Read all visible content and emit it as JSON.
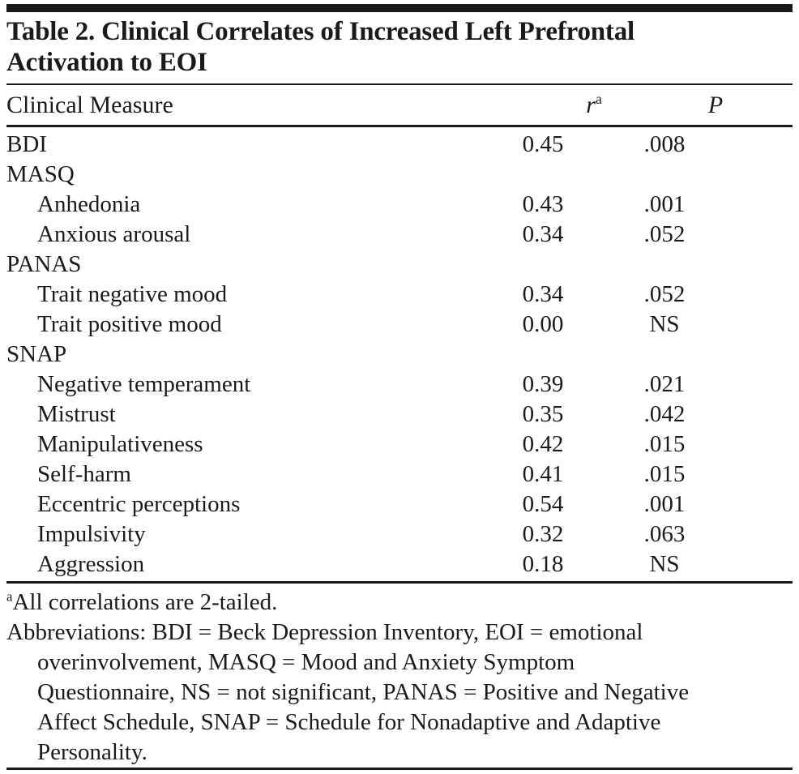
{
  "colors": {
    "text": "#1a1a1a",
    "rule": "#1a1a1a",
    "background": "#ffffff"
  },
  "title": "Table 2. Clinical Correlates of Increased Left Prefrontal\nActivation to EOI",
  "columns": {
    "measure": "Clinical Measure",
    "r_label": "r",
    "r_sup": "a",
    "p_label": "P"
  },
  "rows": [
    {
      "label": "BDI",
      "r": "0.45",
      "p": ".008",
      "indent": false
    },
    {
      "label": "MASQ",
      "r": "",
      "p": "",
      "indent": false
    },
    {
      "label": "Anhedonia",
      "r": "0.43",
      "p": ".001",
      "indent": true
    },
    {
      "label": "Anxious arousal",
      "r": "0.34",
      "p": ".052",
      "indent": true
    },
    {
      "label": "PANAS",
      "r": "",
      "p": "",
      "indent": false
    },
    {
      "label": "Trait negative mood",
      "r": "0.34",
      "p": ".052",
      "indent": true
    },
    {
      "label": "Trait positive mood",
      "r": "0.00",
      "p": "NS",
      "indent": true
    },
    {
      "label": "SNAP",
      "r": "",
      "p": "",
      "indent": false
    },
    {
      "label": "Negative temperament",
      "r": "0.39",
      "p": ".021",
      "indent": true
    },
    {
      "label": "Mistrust",
      "r": "0.35",
      "p": ".042",
      "indent": true
    },
    {
      "label": "Manipulativeness",
      "r": "0.42",
      "p": ".015",
      "indent": true
    },
    {
      "label": "Self-harm",
      "r": "0.41",
      "p": ".015",
      "indent": true
    },
    {
      "label": "Eccentric perceptions",
      "r": "0.54",
      "p": ".001",
      "indent": true
    },
    {
      "label": "Impulsivity",
      "r": "0.32",
      "p": ".063",
      "indent": true
    },
    {
      "label": "Aggression",
      "r": "0.18",
      "p": "NS",
      "indent": true
    }
  ],
  "footnotes": {
    "note_a_sup": "a",
    "note_a_text": "All correlations are 2-tailed.",
    "abbreviations": "Abbreviations: BDI = Beck Depression Inventory, EOI = emotional\noverinvolvement, MASQ = Mood and Anxiety Symptom\nQuestionnaire, NS = not significant, PANAS = Positive and Negative\nAffect Schedule, SNAP = Schedule for Nonadaptive and Adaptive\nPersonality."
  }
}
